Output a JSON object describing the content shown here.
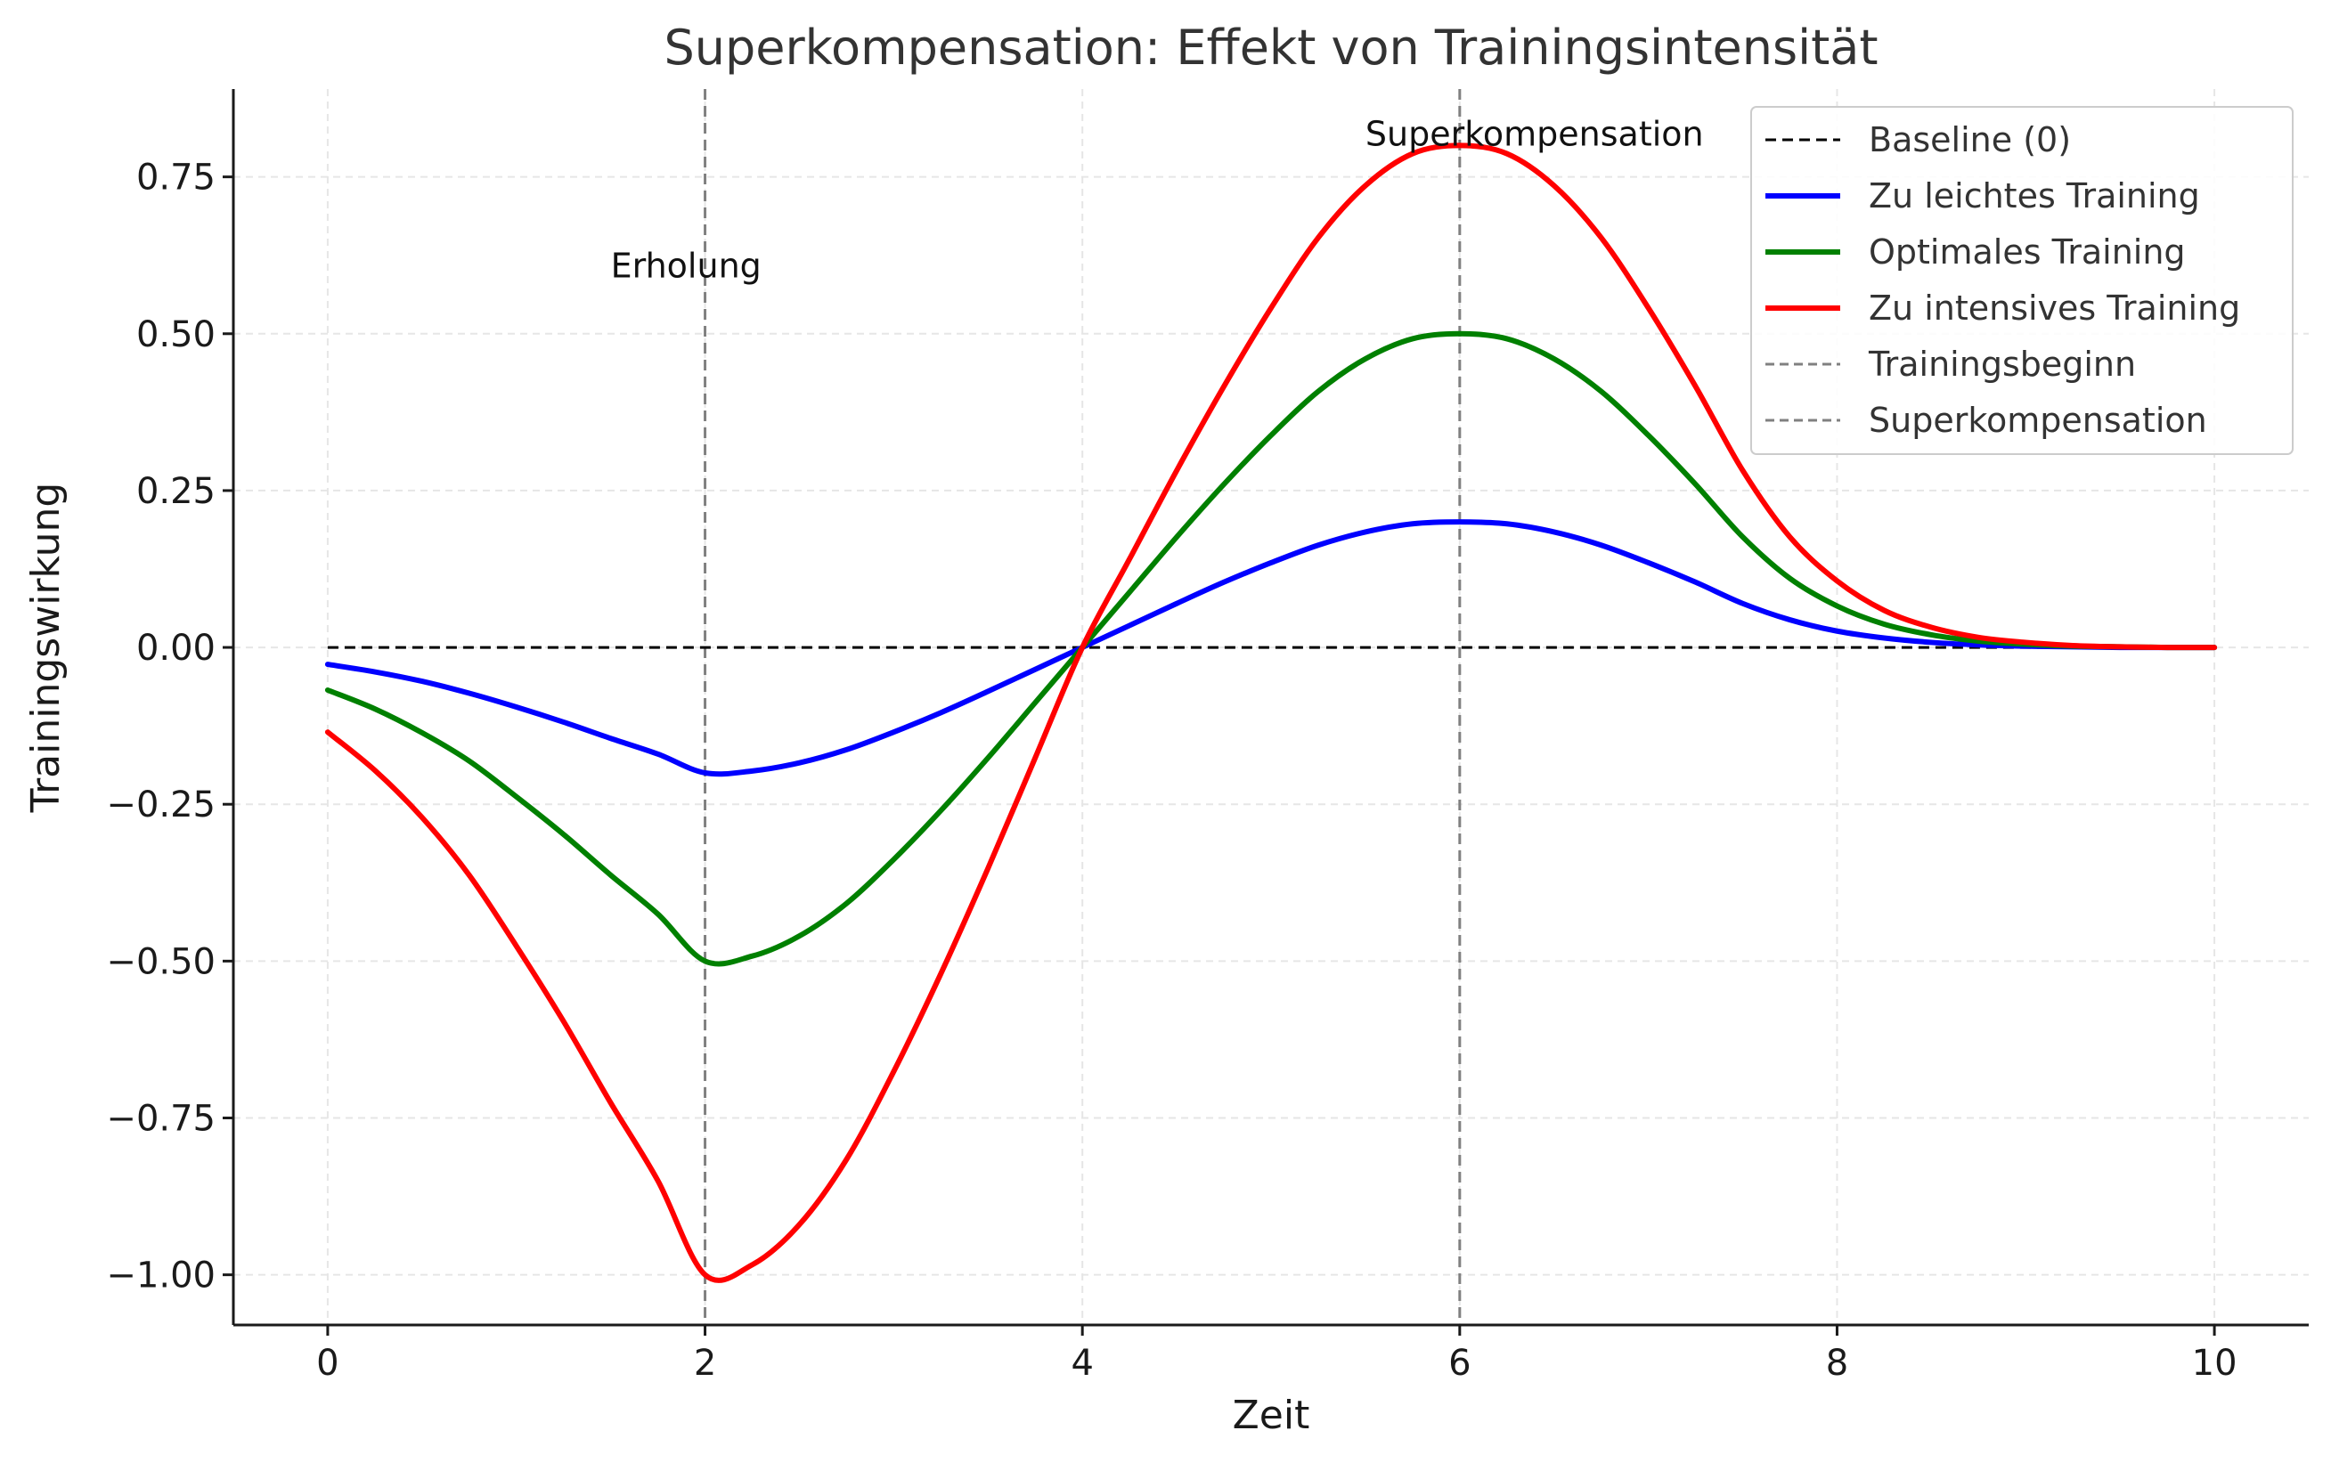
{
  "chart_data": {
    "type": "line",
    "title": "Superkompensation: Effekt von Trainingsintensität",
    "xlabel": "Zeit",
    "ylabel": "Trainingswirkung",
    "xlim": [
      -0.5,
      10.5
    ],
    "ylim": [
      -1.08,
      0.89
    ],
    "x_ticks": [
      0,
      2,
      4,
      6,
      8,
      10
    ],
    "x_tick_labels": [
      "0",
      "2",
      "4",
      "6",
      "8",
      "10"
    ],
    "y_ticks": [
      0.75,
      0.5,
      0.25,
      0.0,
      -0.25,
      -0.5,
      -0.75,
      -1.0
    ],
    "y_tick_labels": [
      "0.75",
      "0.50",
      "0.25",
      "0.00",
      "−0.25",
      "−0.50",
      "−0.75",
      "−1.00"
    ],
    "grid": true,
    "legend_position": "top-right",
    "x": [
      0,
      0.25,
      0.5,
      0.75,
      1,
      1.25,
      1.5,
      1.75,
      2,
      2.25,
      2.5,
      2.75,
      3,
      3.25,
      3.5,
      3.75,
      4,
      4.25,
      4.5,
      4.75,
      5,
      5.25,
      5.5,
      5.75,
      6,
      6.25,
      6.5,
      6.75,
      7,
      7.25,
      7.5,
      7.75,
      8,
      8.25,
      8.5,
      8.75,
      9,
      9.25,
      9.5,
      9.75,
      10
    ],
    "series": [
      {
        "name": "Zu leichtes Training",
        "color": "#0000ff",
        "style": "solid",
        "values": [
          -0.027,
          -0.039,
          -0.054,
          -0.073,
          -0.095,
          -0.119,
          -0.145,
          -0.17,
          -0.2,
          -0.197,
          -0.184,
          -0.163,
          -0.135,
          -0.104,
          -0.07,
          -0.035,
          0.0,
          0.035,
          0.07,
          0.104,
          0.135,
          0.163,
          0.184,
          0.197,
          0.2,
          0.197,
          0.184,
          0.163,
          0.135,
          0.104,
          0.07,
          0.044,
          0.026,
          0.015,
          0.008,
          0.004,
          0.002,
          0.001,
          0.0,
          0.0,
          0.0
        ]
      },
      {
        "name": "Optimales Training",
        "color": "#008000",
        "style": "solid",
        "values": [
          -0.068,
          -0.098,
          -0.136,
          -0.181,
          -0.238,
          -0.298,
          -0.363,
          -0.425,
          -0.5,
          -0.492,
          -0.46,
          -0.408,
          -0.338,
          -0.26,
          -0.176,
          -0.088,
          0.0,
          0.088,
          0.176,
          0.26,
          0.338,
          0.408,
          0.46,
          0.492,
          0.5,
          0.492,
          0.46,
          0.408,
          0.338,
          0.26,
          0.176,
          0.11,
          0.066,
          0.037,
          0.02,
          0.01,
          0.005,
          0.002,
          0.001,
          0.0,
          0.0
        ]
      },
      {
        "name": "Zu intensives Training",
        "color": "#ff0000",
        "style": "solid",
        "values": [
          -0.135,
          -0.196,
          -0.271,
          -0.363,
          -0.476,
          -0.596,
          -0.726,
          -0.85,
          -1.0,
          -0.984,
          -0.92,
          -0.816,
          -0.676,
          -0.52,
          -0.352,
          -0.176,
          0.0,
          0.141,
          0.282,
          0.416,
          0.541,
          0.653,
          0.736,
          0.787,
          0.8,
          0.787,
          0.736,
          0.653,
          0.541,
          0.416,
          0.282,
          0.176,
          0.106,
          0.059,
          0.032,
          0.016,
          0.008,
          0.003,
          0.001,
          0.0,
          0.0
        ]
      }
    ],
    "baseline": {
      "name": "Baseline (0)",
      "color": "#000000",
      "style": "dashed",
      "x_range": [
        0,
        10
      ],
      "y": 0
    },
    "vertical_lines": [
      {
        "name": "Trainingsbeginn",
        "x": 2,
        "color": "#808080",
        "style": "dashed"
      },
      {
        "name": "Superkompensation",
        "x": 6,
        "color": "#808080",
        "style": "dashed"
      }
    ],
    "annotations": [
      {
        "text": "Erholung",
        "x": 1.5,
        "y": 0.59
      },
      {
        "text": "Superkompensation",
        "x": 5.5,
        "y": 0.8
      }
    ],
    "legend": [
      {
        "label": "Baseline (0)",
        "color": "#000000",
        "style": "dashed"
      },
      {
        "label": "Zu leichtes Training",
        "color": "#0000ff",
        "style": "solid"
      },
      {
        "label": "Optimales Training",
        "color": "#008000",
        "style": "solid"
      },
      {
        "label": "Zu intensives Training",
        "color": "#ff0000",
        "style": "solid"
      },
      {
        "label": "Trainingsbeginn",
        "color": "#808080",
        "style": "dashed"
      },
      {
        "label": "Superkompensation",
        "color": "#808080",
        "style": "dashed"
      }
    ]
  }
}
